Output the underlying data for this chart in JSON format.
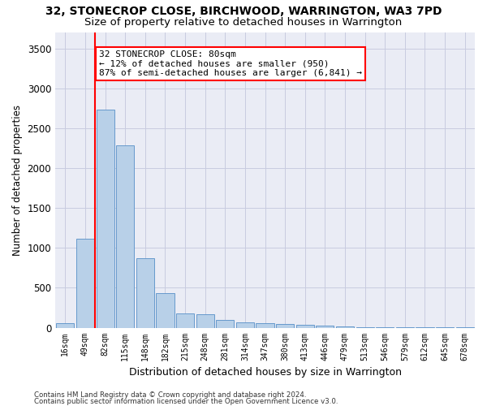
{
  "title1": "32, STONECROP CLOSE, BIRCHWOOD, WARRINGTON, WA3 7PD",
  "title2": "Size of property relative to detached houses in Warrington",
  "xlabel": "Distribution of detached houses by size in Warrington",
  "ylabel": "Number of detached properties",
  "categories": [
    "16sqm",
    "49sqm",
    "82sqm",
    "115sqm",
    "148sqm",
    "182sqm",
    "215sqm",
    "248sqm",
    "281sqm",
    "314sqm",
    "347sqm",
    "380sqm",
    "413sqm",
    "446sqm",
    "479sqm",
    "513sqm",
    "546sqm",
    "579sqm",
    "612sqm",
    "645sqm",
    "678sqm"
  ],
  "values": [
    55,
    1110,
    2730,
    2290,
    875,
    430,
    175,
    165,
    95,
    70,
    55,
    50,
    35,
    30,
    20,
    10,
    10,
    5,
    5,
    3,
    3
  ],
  "bar_color": "#b8d0e8",
  "bar_edge_color": "#6699cc",
  "grid_color": "#c8cce0",
  "bg_color": "#eaecf5",
  "vline_color": "red",
  "annotation_text": "32 STONECROP CLOSE: 80sqm\n← 12% of detached houses are smaller (950)\n87% of semi-detached houses are larger (6,841) →",
  "footer1": "Contains HM Land Registry data © Crown copyright and database right 2024.",
  "footer2": "Contains public sector information licensed under the Open Government Licence v3.0.",
  "ylim": [
    0,
    3700
  ],
  "yticks": [
    0,
    500,
    1000,
    1500,
    2000,
    2500,
    3000,
    3500
  ]
}
